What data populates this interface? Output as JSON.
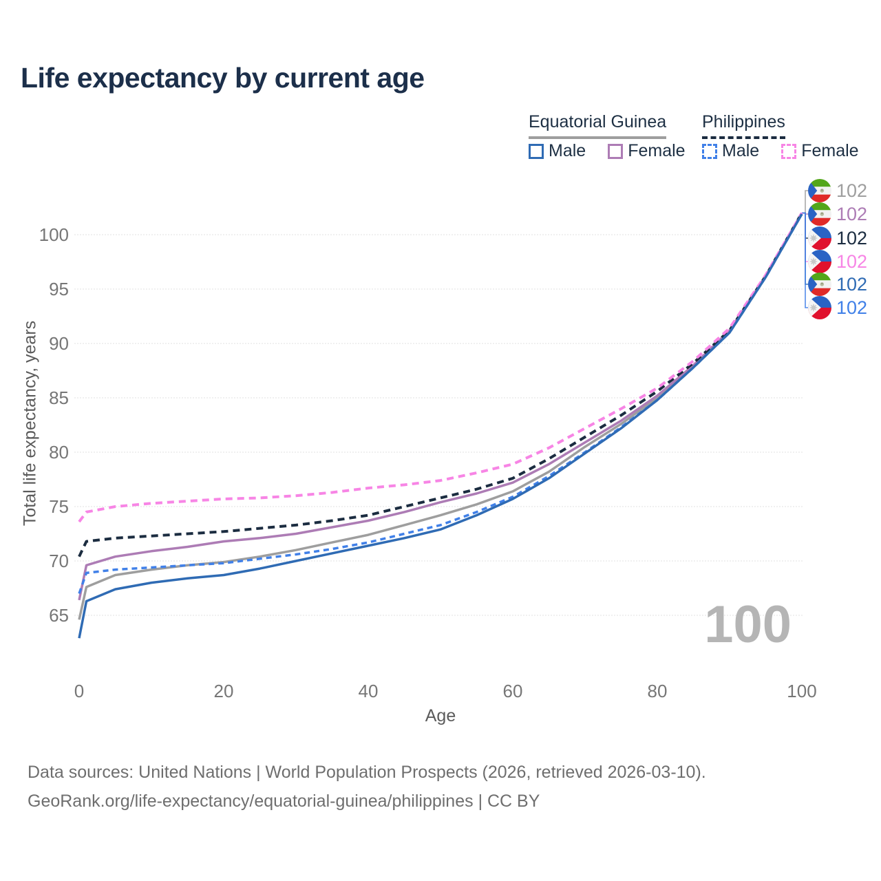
{
  "title": "Life expectancy by current age",
  "legend": {
    "groups": [
      {
        "label": "Equatorial Guinea",
        "line_style": "solid",
        "underline_color": "#9e9e9e"
      },
      {
        "label": "Philippines",
        "line_style": "dashed",
        "underline_color": "#1b2c40"
      }
    ],
    "items": [
      {
        "group": "Equatorial Guinea",
        "label": "Male",
        "color": "#2f6bb4",
        "style": "solid"
      },
      {
        "group": "Equatorial Guinea",
        "label": "Female",
        "color": "#ad7cb5",
        "style": "solid"
      },
      {
        "group": "Philippines",
        "label": "Male",
        "color": "#4080e8",
        "style": "dashed"
      },
      {
        "group": "Philippines",
        "label": "Female",
        "color": "#f785e5",
        "style": "dashed"
      }
    ]
  },
  "chart_data": {
    "type": "line",
    "title": "Life expectancy by current age",
    "xlabel": "Age",
    "ylabel": "Total life expectancy, years",
    "xlim": [
      0,
      100
    ],
    "ylim": [
      62,
      103
    ],
    "x_ticks": [
      0,
      20,
      40,
      60,
      80,
      100
    ],
    "y_ticks": [
      65,
      70,
      75,
      80,
      85,
      90,
      95,
      100
    ],
    "grid": "horizontal",
    "legend_position": "top-right",
    "hover_age_indicator": "100",
    "x": [
      0,
      1,
      5,
      10,
      15,
      20,
      25,
      30,
      35,
      40,
      45,
      50,
      55,
      60,
      65,
      70,
      75,
      80,
      85,
      90,
      95,
      100
    ],
    "series": [
      {
        "name": "Equatorial Guinea (both sexes)",
        "color": "#9e9e9e",
        "dash": null,
        "width": 3.5,
        "values": [
          64.6,
          67.6,
          68.7,
          69.2,
          69.6,
          69.9,
          70.4,
          71.0,
          71.7,
          72.4,
          73.3,
          74.2,
          75.2,
          76.4,
          78.2,
          80.5,
          82.6,
          85.0,
          87.9,
          91.1,
          96.2,
          101.9
        ]
      },
      {
        "name": "Equatorial Guinea Female",
        "color": "#ad7cb5",
        "dash": null,
        "width": 3.5,
        "values": [
          66.4,
          69.6,
          70.4,
          70.9,
          71.3,
          71.8,
          72.1,
          72.5,
          73.1,
          73.7,
          74.5,
          75.4,
          76.2,
          77.2,
          78.9,
          80.9,
          82.9,
          85.2,
          88.0,
          91.2,
          96.2,
          102.0
        ]
      },
      {
        "name": "Philippines (both sexes)",
        "color": "#1b2c40",
        "dash": "10 7",
        "width": 4,
        "values": [
          70.4,
          71.8,
          72.1,
          72.3,
          72.5,
          72.7,
          73.0,
          73.3,
          73.7,
          74.2,
          75.0,
          75.8,
          76.6,
          77.6,
          79.4,
          81.4,
          83.4,
          85.6,
          88.2,
          91.2,
          96.2,
          102.0
        ]
      },
      {
        "name": "Philippines Female",
        "color": "#f785e5",
        "dash": "10 7",
        "width": 4,
        "values": [
          73.6,
          74.5,
          75.0,
          75.3,
          75.5,
          75.7,
          75.8,
          76.0,
          76.3,
          76.7,
          77.0,
          77.4,
          78.1,
          78.9,
          80.4,
          82.2,
          84.0,
          85.9,
          88.4,
          91.4,
          96.3,
          102.0
        ]
      },
      {
        "name": "Philippines Male",
        "color": "#4080e8",
        "dash": "8 6",
        "width": 3.5,
        "values": [
          67.0,
          68.9,
          69.2,
          69.4,
          69.6,
          69.8,
          70.2,
          70.6,
          71.1,
          71.7,
          72.5,
          73.3,
          74.5,
          75.9,
          77.8,
          80.0,
          82.3,
          84.8,
          87.8,
          91.0,
          96.1,
          101.9
        ]
      },
      {
        "name": "Equatorial Guinea Male",
        "color": "#2f6bb4",
        "dash": null,
        "width": 3.5,
        "values": [
          62.9,
          66.3,
          67.4,
          68.0,
          68.4,
          68.7,
          69.3,
          70.0,
          70.7,
          71.4,
          72.1,
          72.9,
          74.2,
          75.7,
          77.6,
          79.9,
          82.2,
          84.8,
          87.8,
          91.0,
          96.1,
          101.9
        ]
      }
    ],
    "endpoints": [
      {
        "flag": "gq",
        "series": "Equatorial Guinea (both sexes)",
        "value": "102",
        "color": "#9e9e9e",
        "row_y": 277
      },
      {
        "flag": "gq",
        "series": "Equatorial Guinea Female",
        "value": "102",
        "color": "#ad7cb5",
        "row_y": 311
      },
      {
        "flag": "ph",
        "series": "Philippines (both sexes)",
        "value": "102",
        "color": "#1b2c40",
        "row_y": 346
      },
      {
        "flag": "ph",
        "series": "Philippines Female",
        "value": "102",
        "color": "#f785e5",
        "row_y": 380
      },
      {
        "flag": "gq",
        "series": "Equatorial Guinea Male",
        "value": "102",
        "color": "#2f6bb4",
        "row_y": 413
      },
      {
        "flag": "ph",
        "series": "Philippines Male",
        "value": "102",
        "color": "#4080e8",
        "row_y": 447
      }
    ]
  },
  "footer": {
    "line1": "Data sources: United Nations | World Population Prospects (2026, retrieved 2026-03-10).",
    "line2": "GeoRank.org/life-expectancy/equatorial-guinea/philippines | CC BY"
  }
}
